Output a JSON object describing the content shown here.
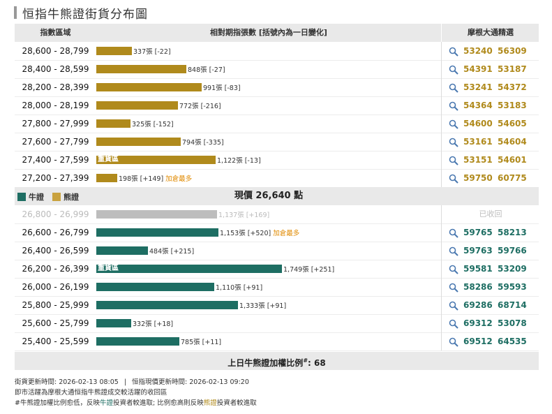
{
  "title": "恒指牛熊證街貨分布圖",
  "header": {
    "range": "指數區域",
    "bars": "相對期指張數 [括號內為一日變化]",
    "selection": "摩根大通精選"
  },
  "colors": {
    "bear": "#b08a1c",
    "bull": "#1e6e63",
    "recalled": "#bdbdbd",
    "note": "#e08a00"
  },
  "icons": {
    "search": "search-icon"
  },
  "bear_rows": [
    {
      "range": "28,600 - 28,799",
      "label": "337張 [-22]",
      "note": "",
      "heavy": "",
      "codes": [
        "53240",
        "56309"
      ]
    },
    {
      "range": "28,400 - 28,599",
      "label": "848張 [-27]",
      "note": "",
      "heavy": "",
      "codes": [
        "54391",
        "53187"
      ]
    },
    {
      "range": "28,200 - 28,399",
      "label": "991張 [-83]",
      "note": "",
      "heavy": "",
      "codes": [
        "53241",
        "54372"
      ]
    },
    {
      "range": "28,000 - 28,199",
      "label": "772張 [-216]",
      "note": "",
      "heavy": "",
      "codes": [
        "54364",
        "53183"
      ]
    },
    {
      "range": "27,800 - 27,999",
      "label": "325張 [-152]",
      "note": "",
      "heavy": "",
      "codes": [
        "54600",
        "54605"
      ]
    },
    {
      "range": "27,600 - 27,799",
      "label": "794張 [-335]",
      "note": "",
      "heavy": "",
      "codes": [
        "53161",
        "54604"
      ]
    },
    {
      "range": "27,400 - 27,599",
      "label": "1,122張 [-13]",
      "note": "",
      "heavy": "重貨區",
      "codes": [
        "53151",
        "54601"
      ]
    },
    {
      "range": "27,200 - 27,399",
      "label": "198張 [+149]",
      "note": "加倉最多",
      "heavy": "",
      "codes": [
        "59750",
        "60775"
      ]
    }
  ],
  "middle": {
    "bull_legend": "牛證",
    "bear_legend": "熊證",
    "price": "現價 26,640 點"
  },
  "bull_rows": [
    {
      "range": "26,800 - 26,999",
      "label": "1,137張 [+169]",
      "note": "",
      "heavy": "",
      "recalled": "已收回",
      "codes": []
    },
    {
      "range": "26,600 - 26,799",
      "label": "1,153張 [+520]",
      "note": "加倉最多",
      "heavy": "",
      "recalled": "",
      "codes": [
        "59765",
        "58213"
      ]
    },
    {
      "range": "26,400 - 26,599",
      "label": "484張 [+215]",
      "note": "",
      "heavy": "",
      "recalled": "",
      "codes": [
        "59763",
        "59766"
      ]
    },
    {
      "range": "26,200 - 26,399",
      "label": "1,749張 [+251]",
      "note": "",
      "heavy": "重貨區",
      "recalled": "",
      "codes": [
        "59581",
        "53209"
      ]
    },
    {
      "range": "26,000 - 26,199",
      "label": "1,110張 [+91]",
      "note": "",
      "heavy": "",
      "recalled": "",
      "codes": [
        "58286",
        "59593"
      ]
    },
    {
      "range": "25,800 - 25,999",
      "label": "1,333張 [+91]",
      "note": "",
      "heavy": "",
      "recalled": "",
      "codes": [
        "69286",
        "68714"
      ]
    },
    {
      "range": "25,600 - 25,799",
      "label": "332張 [+18]",
      "note": "",
      "heavy": "",
      "recalled": "",
      "codes": [
        "69312",
        "53078"
      ]
    },
    {
      "range": "25,400 - 25,599",
      "label": "785張 [+11]",
      "note": "",
      "heavy": "",
      "recalled": "",
      "codes": [
        "69512",
        "64535"
      ]
    }
  ],
  "footer": {
    "ratio_label": "上日牛熊證加權比例",
    "ratio_sup": "#",
    "ratio_value": ": 68"
  },
  "notes": {
    "update_street": "街貨更新時間: 2026-02-13 08:05",
    "separator": "|",
    "update_index": "恒指現價更新時間: 2026-02-13 09:20",
    "line2": "即市活躍為摩根大通恒指牛熊證成交較活躍的收回區",
    "line3_a": "#牛熊證加權比例愈低，反映",
    "line3_bull": "牛證",
    "line3_b": "投資者較進取; 比例愈高則反映",
    "line3_bear": "熊證",
    "line3_c": "投資者較進取"
  },
  "chart_data": {
    "type": "bar",
    "orientation": "horizontal",
    "title": "恒指牛熊證街貨分布圖",
    "unit": "張",
    "current_price": 26640,
    "series": [
      {
        "name": "熊證",
        "categories": [
          "28,600 - 28,799",
          "28,400 - 28,599",
          "28,200 - 28,399",
          "28,000 - 28,199",
          "27,800 - 27,999",
          "27,600 - 27,799",
          "27,400 - 27,599",
          "27,200 - 27,399"
        ],
        "values": [
          337,
          848,
          991,
          772,
          325,
          794,
          1122,
          198
        ],
        "changes": [
          -22,
          -27,
          -83,
          -216,
          -152,
          -335,
          -13,
          149
        ]
      },
      {
        "name": "牛證",
        "categories": [
          "26,800 - 26,999",
          "26,600 - 26,799",
          "26,400 - 26,599",
          "26,200 - 26,399",
          "26,000 - 26,199",
          "25,800 - 25,999",
          "25,600 - 25,799",
          "25,400 - 25,599"
        ],
        "values": [
          1137,
          1153,
          484,
          1749,
          1110,
          1333,
          332,
          785
        ],
        "changes": [
          169,
          520,
          215,
          251,
          91,
          91,
          18,
          11
        ]
      }
    ],
    "xlim": [
      0,
      1749
    ]
  }
}
